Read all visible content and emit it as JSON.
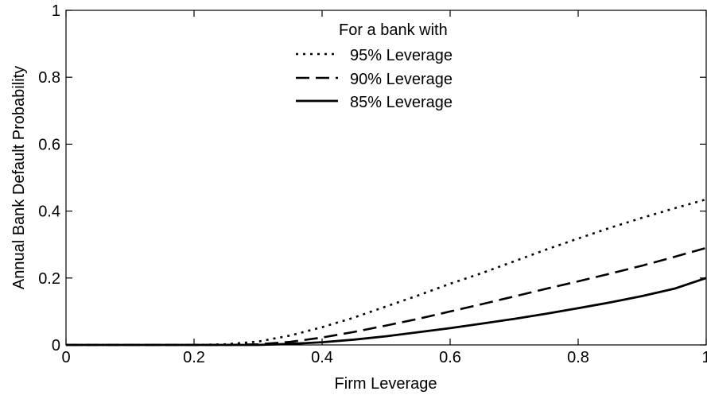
{
  "chart_data": {
    "type": "line",
    "title": "",
    "xlabel": "Firm Leverage",
    "ylabel": "Annual Bank Default Probability",
    "xlim": [
      0,
      1
    ],
    "ylim": [
      0,
      1
    ],
    "xticks": [
      0,
      0.2,
      0.4,
      0.6,
      0.8,
      1
    ],
    "yticks": [
      0,
      0.2,
      0.4,
      0.6,
      0.8,
      1
    ],
    "xtick_labels": [
      "0",
      "0.2",
      "0.4",
      "0.6",
      "0.8",
      "1"
    ],
    "ytick_labels": [
      "0",
      "0.2",
      "0.4",
      "0.6",
      "0.8",
      "1"
    ],
    "grid": false,
    "legend": {
      "title": "For a bank with",
      "placement": "top-center"
    },
    "x": [
      0,
      0.1,
      0.2,
      0.25,
      0.3,
      0.35,
      0.4,
      0.45,
      0.5,
      0.55,
      0.6,
      0.65,
      0.7,
      0.75,
      0.8,
      0.85,
      0.9,
      0.95,
      1.0
    ],
    "series": [
      {
        "name": "95%  Leverage",
        "style": "dotted",
        "color": "#000000",
        "values": [
          0,
          0,
          0,
          0.002,
          0.01,
          0.028,
          0.053,
          0.082,
          0.115,
          0.148,
          0.183,
          0.215,
          0.25,
          0.285,
          0.318,
          0.35,
          0.38,
          0.408,
          0.435
        ]
      },
      {
        "name": "90%  Leverage",
        "style": "dashed",
        "color": "#000000",
        "values": [
          0,
          0,
          0,
          0,
          0.002,
          0.009,
          0.022,
          0.039,
          0.058,
          0.078,
          0.1,
          0.122,
          0.145,
          0.168,
          0.19,
          0.213,
          0.237,
          0.263,
          0.29
        ]
      },
      {
        "name": "85%  Leverage",
        "style": "solid",
        "color": "#000000",
        "values": [
          0,
          0,
          0,
          0,
          0,
          0.003,
          0.008,
          0.016,
          0.026,
          0.038,
          0.05,
          0.064,
          0.078,
          0.093,
          0.11,
          0.127,
          0.146,
          0.168,
          0.2
        ]
      }
    ]
  }
}
